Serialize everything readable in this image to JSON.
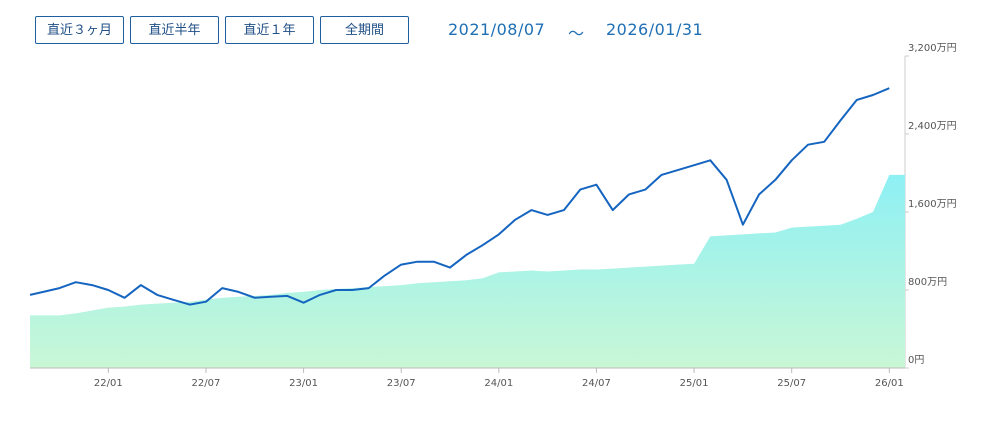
{
  "buttons": [
    "直近３ヶ月",
    "直近半年",
    "直近１年",
    "全期間"
  ],
  "period": {
    "start": "2021/08/07",
    "separator": "～",
    "end": "2026/01/31"
  },
  "chart_data": {
    "type": "line",
    "categories": [
      null,
      null,
      null,
      null,
      null,
      "22/01",
      null,
      null,
      null,
      null,
      null,
      "22/07",
      null,
      null,
      null,
      null,
      null,
      "23/01",
      null,
      null,
      null,
      null,
      null,
      "23/07",
      null,
      null,
      null,
      null,
      null,
      "24/01",
      null,
      null,
      null,
      null,
      null,
      "24/07",
      null,
      null,
      null,
      null,
      null,
      "25/01",
      null,
      null,
      null,
      null,
      null,
      "25/07",
      null,
      null,
      null,
      null,
      null,
      "26/01"
    ],
    "series": [
      {
        "color": "#8ef0f4",
        "fill": "area",
        "values": [
          540,
          540,
          540,
          560,
          590,
          620,
          630,
          650,
          660,
          670,
          680,
          700,
          720,
          730,
          740,
          750,
          770,
          780,
          800,
          810,
          820,
          830,
          840,
          850,
          870,
          880,
          890,
          900,
          920,
          980,
          990,
          1000,
          990,
          1000,
          1010,
          1010,
          1020,
          1030,
          1040,
          1050,
          1060,
          1070,
          1350,
          1360,
          1370,
          1380,
          1390,
          1440,
          1450,
          1460,
          1470,
          1530,
          1600,
          1980
        ]
      },
      {
        "color": "#1565c0",
        "fill": "line",
        "values": [
          750,
          780,
          820,
          880,
          850,
          800,
          720,
          850,
          750,
          700,
          650,
          680,
          820,
          780,
          720,
          730,
          740,
          670,
          750,
          800,
          800,
          820,
          950,
          1060,
          1090,
          1090,
          1030,
          1160,
          1260,
          1370,
          1520,
          1620,
          1570,
          1620,
          1830,
          1880,
          1620,
          1780,
          1830,
          1980,
          2030,
          2080,
          2130,
          1930,
          1470,
          1780,
          1930,
          2130,
          2290,
          2320,
          2540,
          2750,
          2800,
          2870
        ]
      }
    ],
    "ylim": [
      0,
      3200
    ],
    "yticks": [
      {
        "value": 0,
        "label": "0円"
      },
      {
        "value": 800,
        "label": "800万円"
      },
      {
        "value": 1600,
        "label": "1,600万円"
      },
      {
        "value": 2400,
        "label": "2,400万円"
      },
      {
        "value": 3200,
        "label": "3,200万円"
      }
    ]
  }
}
